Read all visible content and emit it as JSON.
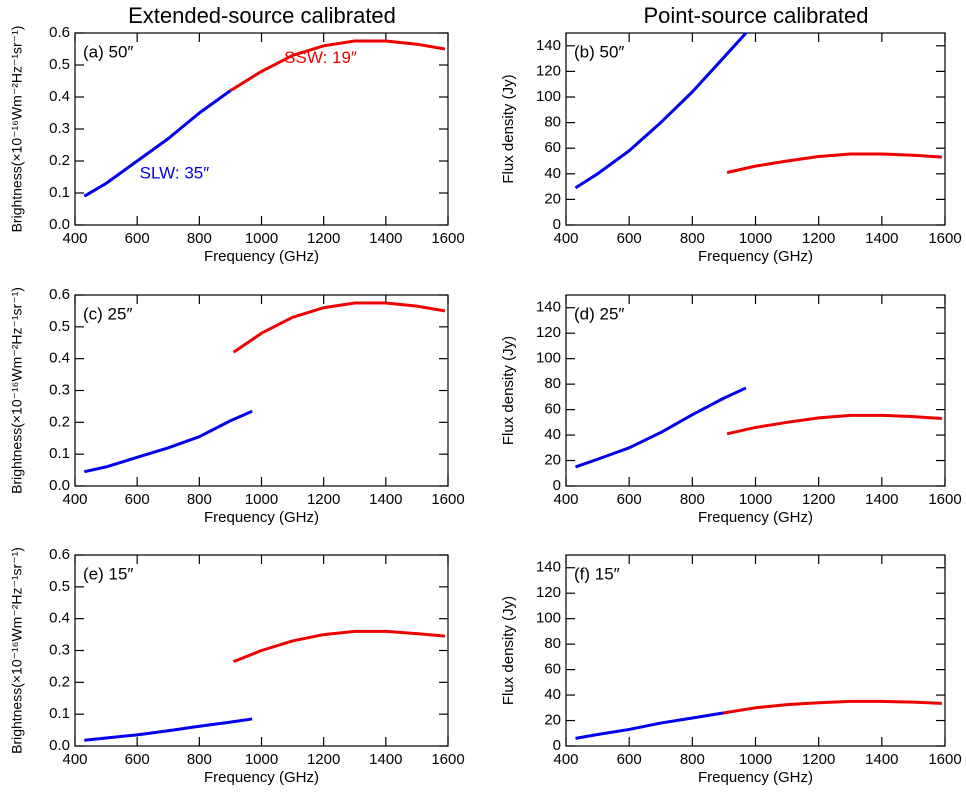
{
  "headings": [
    "Extended-source calibrated",
    "Point-source calibrated"
  ],
  "chart_data": [
    {
      "type": "line",
      "panel_label": "(a) 50″",
      "xlabel": "Frequency (GHz)",
      "ylabel": "Brightness(×10⁻¹⁶Wm⁻²Hz⁻¹sr⁻¹)",
      "xlim": [
        400,
        1600
      ],
      "xticks": [
        400,
        600,
        800,
        1000,
        1200,
        1400,
        1600
      ],
      "ylim": [
        0,
        0.6
      ],
      "yticks": [
        {
          "value": 0,
          "label": "0.0"
        },
        0.1,
        0.2,
        0.3,
        0.4,
        0.5,
        0.6
      ],
      "series": [
        {
          "color": "#0000ee",
          "x": [
            430,
            500,
            600,
            700,
            800,
            900
          ],
          "values": [
            0.09,
            0.13,
            0.2,
            0.27,
            0.35,
            0.42
          ]
        },
        {
          "color": "#ee0000",
          "x": [
            900,
            1000,
            1100,
            1200,
            1300,
            1400,
            1500,
            1590
          ],
          "values": [
            0.42,
            0.48,
            0.53,
            0.56,
            0.575,
            0.575,
            0.565,
            0.55
          ]
        }
      ],
      "annotations": [
        {
          "text": "SSW: 19″",
          "color": "#ee0000"
        },
        {
          "text": "SLW: 35″",
          "color": "#0000ee"
        }
      ]
    },
    {
      "type": "line",
      "panel_label": "(b) 50″",
      "xlabel": "Frequency (GHz)",
      "ylabel": "Flux density (Jy)",
      "xlim": [
        400,
        1600
      ],
      "xticks": [
        400,
        600,
        800,
        1000,
        1200,
        1400,
        1600
      ],
      "ylim": [
        0,
        150
      ],
      "yticks": [
        0,
        20,
        40,
        60,
        80,
        100,
        120,
        140
      ],
      "series": [
        {
          "color": "#0000ee",
          "x": [
            430,
            500,
            600,
            700,
            800,
            900,
            970
          ],
          "values": [
            29,
            40,
            58,
            80,
            104,
            131,
            150
          ]
        },
        {
          "color": "#ee0000",
          "x": [
            910,
            1000,
            1100,
            1200,
            1300,
            1400,
            1500,
            1590
          ],
          "values": [
            41,
            46,
            50,
            53.5,
            55.5,
            55.5,
            54.5,
            53
          ]
        }
      ]
    },
    {
      "type": "line",
      "panel_label": "(c) 25″",
      "xlabel": "Frequency (GHz)",
      "ylabel": "Brightness(×10⁻¹⁶Wm⁻²Hz⁻¹sr⁻¹)",
      "xlim": [
        400,
        1600
      ],
      "xticks": [
        400,
        600,
        800,
        1000,
        1200,
        1400,
        1600
      ],
      "ylim": [
        0,
        0.6
      ],
      "yticks": [
        {
          "value": 0,
          "label": "0.0"
        },
        0.1,
        0.2,
        0.3,
        0.4,
        0.5,
        0.6
      ],
      "series": [
        {
          "color": "#0000ee",
          "x": [
            430,
            500,
            600,
            700,
            800,
            900,
            970
          ],
          "values": [
            0.045,
            0.06,
            0.09,
            0.12,
            0.155,
            0.205,
            0.235
          ]
        },
        {
          "color": "#ee0000",
          "x": [
            910,
            1000,
            1100,
            1200,
            1300,
            1400,
            1500,
            1590
          ],
          "values": [
            0.42,
            0.48,
            0.53,
            0.56,
            0.575,
            0.575,
            0.565,
            0.55
          ]
        }
      ]
    },
    {
      "type": "line",
      "panel_label": "(d) 25″",
      "xlabel": "Frequency (GHz)",
      "ylabel": "Flux density (Jy)",
      "xlim": [
        400,
        1600
      ],
      "xticks": [
        400,
        600,
        800,
        1000,
        1200,
        1400,
        1600
      ],
      "ylim": [
        0,
        150
      ],
      "yticks": [
        0,
        20,
        40,
        60,
        80,
        100,
        120,
        140
      ],
      "series": [
        {
          "color": "#0000ee",
          "x": [
            430,
            500,
            600,
            700,
            800,
            900,
            970
          ],
          "values": [
            15,
            21,
            30,
            42,
            56,
            69,
            77
          ]
        },
        {
          "color": "#ee0000",
          "x": [
            910,
            1000,
            1100,
            1200,
            1300,
            1400,
            1500,
            1590
          ],
          "values": [
            41,
            46,
            50,
            53.5,
            55.5,
            55.5,
            54.5,
            53
          ]
        }
      ]
    },
    {
      "type": "line",
      "panel_label": "(e) 15″",
      "xlabel": "Frequency (GHz)",
      "ylabel": "Brightness(×10⁻¹⁶Wm⁻²Hz⁻¹sr⁻¹)",
      "xlim": [
        400,
        1600
      ],
      "xticks": [
        400,
        600,
        800,
        1000,
        1200,
        1400,
        1600
      ],
      "ylim": [
        0,
        0.6
      ],
      "yticks": [
        {
          "value": 0,
          "label": "0.0"
        },
        0.1,
        0.2,
        0.3,
        0.4,
        0.5,
        0.6
      ],
      "series": [
        {
          "color": "#0000ee",
          "x": [
            430,
            500,
            600,
            700,
            800,
            900,
            970
          ],
          "values": [
            0.018,
            0.025,
            0.035,
            0.048,
            0.062,
            0.075,
            0.085
          ]
        },
        {
          "color": "#ee0000",
          "x": [
            910,
            1000,
            1100,
            1200,
            1300,
            1400,
            1500,
            1590
          ],
          "values": [
            0.265,
            0.3,
            0.33,
            0.35,
            0.36,
            0.36,
            0.353,
            0.345
          ]
        }
      ]
    },
    {
      "type": "line",
      "panel_label": "(f) 15″",
      "xlabel": "Frequency (GHz)",
      "ylabel": "Flux density (Jy)",
      "xlim": [
        400,
        1600
      ],
      "xticks": [
        400,
        600,
        800,
        1000,
        1200,
        1400,
        1600
      ],
      "ylim": [
        0,
        150
      ],
      "yticks": [
        0,
        20,
        40,
        60,
        80,
        100,
        120,
        140
      ],
      "series": [
        {
          "color": "#0000ee",
          "x": [
            430,
            500,
            600,
            700,
            800,
            900
          ],
          "values": [
            6,
            9,
            13,
            18,
            22,
            26
          ]
        },
        {
          "color": "#ee0000",
          "x": [
            900,
            1000,
            1100,
            1200,
            1300,
            1400,
            1500,
            1590
          ],
          "values": [
            26,
            30,
            32.5,
            34,
            35,
            35,
            34.5,
            33.5
          ]
        }
      ]
    }
  ]
}
